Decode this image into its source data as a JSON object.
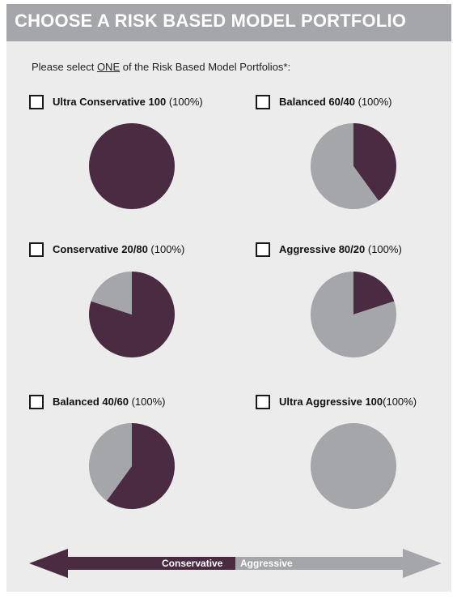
{
  "header": {
    "title": "CHOOSE A RISK BASED MODEL PORTFOLIO"
  },
  "instruction": {
    "before": "Please select ",
    "emphasis": "ONE",
    "after": " of the Risk Based Model Portfolios*:"
  },
  "colors": {
    "conservative": "#4a2b42",
    "aggressive": "#a5a6a9",
    "banner": "#a5a6a9",
    "page_background": "#ececec"
  },
  "portfolios": [
    {
      "name": "Ultra Conservative 100",
      "percent": "(100%)",
      "conservative_pct": 100,
      "aggressive_pct": 0
    },
    {
      "name": "Balanced 60/40",
      "percent": "(100%)",
      "conservative_pct": 40,
      "aggressive_pct": 60
    },
    {
      "name": "Conservative 20/80",
      "percent": "(100%)",
      "conservative_pct": 80,
      "aggressive_pct": 20
    },
    {
      "name": "Aggressive 80/20",
      "percent": "(100%)",
      "conservative_pct": 20,
      "aggressive_pct": 80
    },
    {
      "name": "Balanced 40/60",
      "percent": "(100%)",
      "conservative_pct": 60,
      "aggressive_pct": 40
    },
    {
      "name": "Ultra Aggressive 100",
      "percent": "(100%)",
      "conservative_pct": 0,
      "aggressive_pct": 100
    }
  ],
  "scale": {
    "left_label": "Conservative",
    "right_label": "Aggressive"
  }
}
